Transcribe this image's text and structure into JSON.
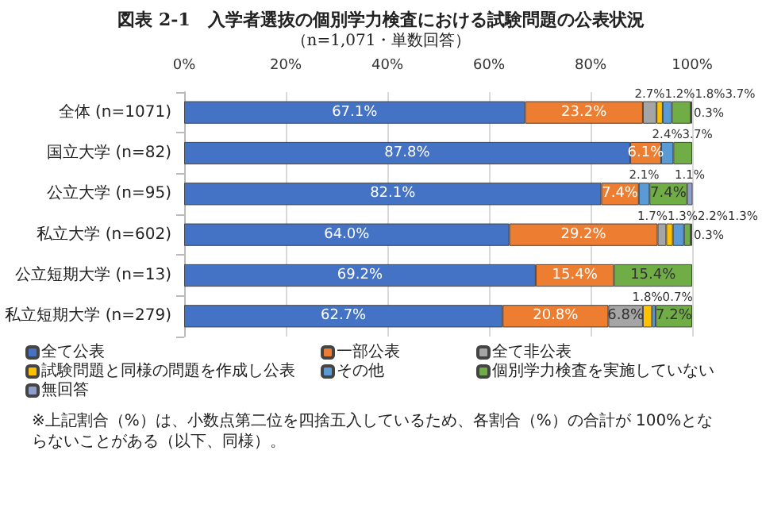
{
  "chart_data": {
    "type": "bar",
    "orientation": "horizontal",
    "stacked": true,
    "title": "図表 2-1　入学者選抜の個別学力検査における試験問題の公表状況",
    "subtitle": "（n=1,071・単数回答）",
    "categories": [
      "全体 (n=1071)",
      "国立大学 (n=82)",
      "公立大学 (n=95)",
      "私立大学 (n=602)",
      "公立短期大学 (n=13)",
      "私立短期大学 (n=279)"
    ],
    "series": [
      {
        "name": "全て公表",
        "color": "#4472c4",
        "values": [
          67.1,
          87.8,
          82.1,
          64.0,
          69.2,
          62.7
        ],
        "value_labels": [
          "67.1%",
          "87.8%",
          "82.1%",
          "64.0%",
          "69.2%",
          "62.7%"
        ]
      },
      {
        "name": "一部公表",
        "color": "#ed7d31",
        "values": [
          23.2,
          6.1,
          7.4,
          29.2,
          15.4,
          20.8
        ],
        "value_labels": [
          "23.2%",
          "6.1%",
          "7.4%",
          "29.2%",
          "15.4%",
          "20.8%"
        ]
      },
      {
        "name": "全て非公表",
        "color": "#a5a5a5",
        "values": [
          2.7,
          null,
          null,
          1.7,
          null,
          6.8
        ],
        "value_labels": [
          "2.7%",
          null,
          null,
          "1.7%",
          null,
          "6.8%"
        ]
      },
      {
        "name": "試験問題と同様の問題を作成し公表",
        "color": "#ffc000",
        "values": [
          1.2,
          null,
          null,
          1.3,
          null,
          1.8
        ],
        "value_labels": [
          "1.2%",
          null,
          null,
          "1.3%",
          null,
          "1.8%"
        ]
      },
      {
        "name": "その他",
        "color": "#5b9bd5",
        "values": [
          1.8,
          2.4,
          2.1,
          2.2,
          null,
          0.7
        ],
        "value_labels": [
          "1.8%",
          "2.4%",
          "2.1%",
          "2.2%",
          null,
          "0.7%"
        ]
      },
      {
        "name": "個別学力検査を実施していない",
        "color": "#70ad47",
        "values": [
          3.7,
          3.7,
          7.4,
          1.3,
          15.4,
          7.2
        ],
        "value_labels": [
          "3.7%",
          "3.7%",
          "7.4%",
          "1.3%",
          "15.4%",
          "7.2%"
        ]
      },
      {
        "name": "無回答",
        "color": "#8e9dcc",
        "values": [
          0.3,
          null,
          1.1,
          0.3,
          null,
          null
        ],
        "value_labels": [
          "0.3%",
          null,
          "1.1%",
          "0.3%",
          null,
          null
        ]
      }
    ],
    "xlim": [
      0,
      100
    ],
    "xticks": [
      {
        "value": 0,
        "label": "0%"
      },
      {
        "value": 20,
        "label": "20%"
      },
      {
        "value": 40,
        "label": "40%"
      },
      {
        "value": 60,
        "label": "60%"
      },
      {
        "value": 80,
        "label": "80%"
      },
      {
        "value": 100,
        "label": "100%"
      }
    ],
    "grid": "x",
    "legend": "bottom",
    "annotations": [
      "※上記割合（%）は、小数点第二位を四捨五入しているため、各割合（%）の合計が 100%とならないことがある（以下、同様）。"
    ]
  }
}
